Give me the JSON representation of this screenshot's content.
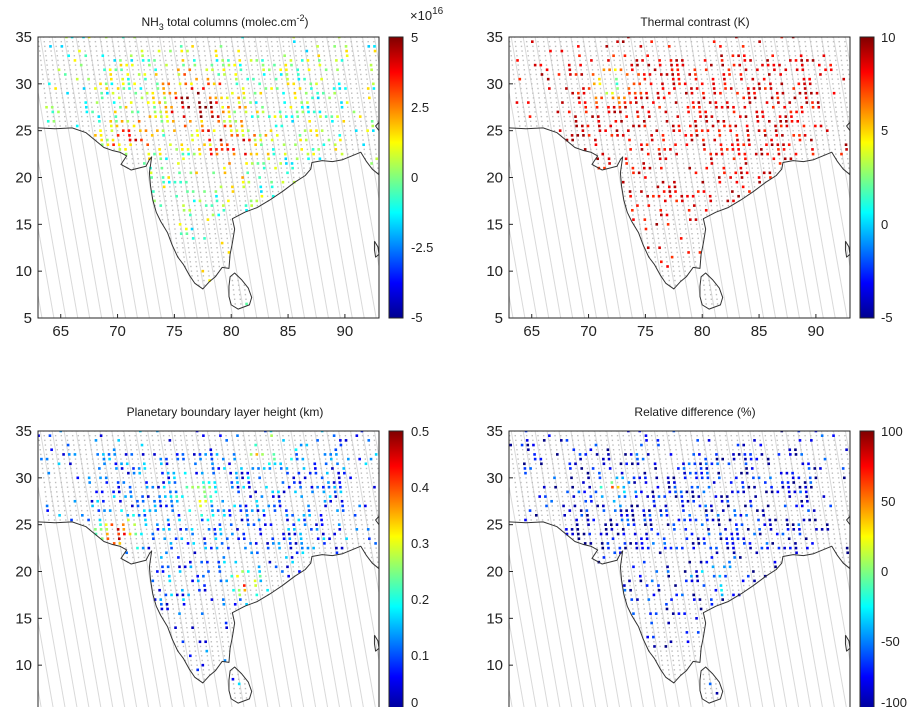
{
  "maps": [
    {
      "title_main": "NH",
      "title_sub": "3",
      "title_rest": " total columns (molec.cm",
      "title_sup": "-2",
      "title_end": ")",
      "colorbar": {
        "ticks": [
          "5",
          "2.5",
          "0",
          "-2.5",
          "-5"
        ],
        "exponent_prefix": "×10",
        "exponent": "16"
      }
    },
    {
      "title_main": "Thermal contrast (K)",
      "colorbar": {
        "ticks": [
          "10",
          "5",
          "0",
          "-5"
        ]
      }
    },
    {
      "title_main": "Planetary boundary layer height (km)",
      "colorbar": {
        "ticks": [
          "0.5",
          "0.4",
          "0.3",
          "0.2",
          "0.1",
          "0"
        ]
      }
    },
    {
      "title_main": "Relative difference (%)",
      "colorbar": {
        "ticks": [
          "100",
          "50",
          "0",
          "-50",
          "-100"
        ]
      }
    }
  ],
  "axes": {
    "x_ticks": [
      "65",
      "70",
      "75",
      "80",
      "85",
      "90"
    ],
    "y_ticks": [
      "35",
      "30",
      "25",
      "20",
      "15",
      "10",
      "5"
    ],
    "x_range": [
      63,
      93
    ],
    "y_range": [
      5,
      35
    ]
  },
  "colormap": "jet"
}
